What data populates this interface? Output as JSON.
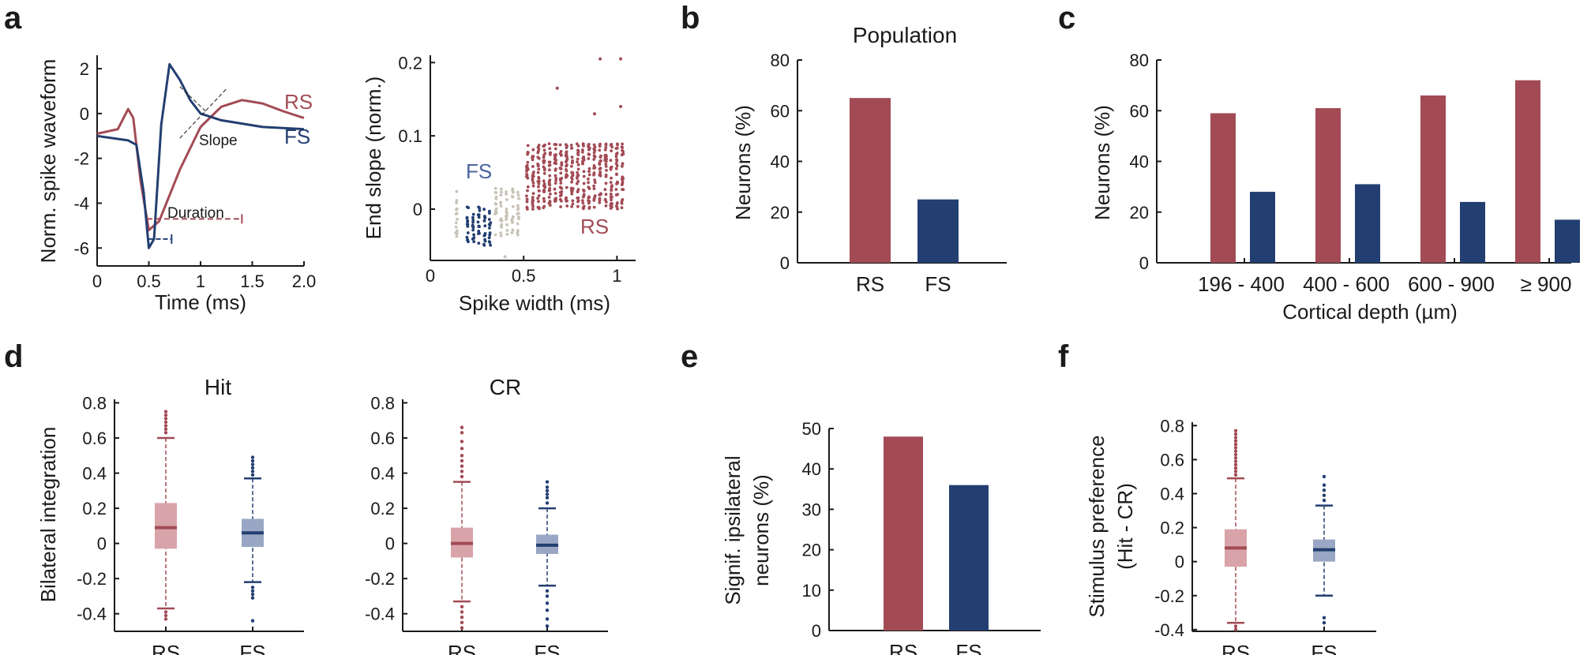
{
  "colors": {
    "rs": "#a24b55",
    "fs": "#233f71",
    "rs_light": "#d9a4a9",
    "fs_light": "#9aa7c4",
    "axis": "#1a1a1a",
    "grey": "#c8c3b6"
  },
  "panel_letters": [
    "a",
    "b",
    "c",
    "d",
    "e",
    "f"
  ],
  "chart_data": [
    {
      "id": "a1",
      "type": "line",
      "panel": "a",
      "xlabel": "Time (ms)",
      "ylabel": "Norm. spike waveform",
      "xlim": [
        0,
        2
      ],
      "ylim": [
        -6.8,
        2.6
      ],
      "xticks": [
        "0",
        "0.5",
        "1",
        "1.5",
        "2.0"
      ],
      "xtick_values": [
        0,
        0.5,
        1,
        1.5,
        2
      ],
      "yticks": [
        "2",
        "0",
        "-2",
        "-4",
        "-6"
      ],
      "ytick_values": [
        2,
        0,
        -2,
        -4,
        -6
      ],
      "series": [
        {
          "name": "RS",
          "color_key": "rs",
          "x": [
            0,
            0.2,
            0.3,
            0.35,
            0.42,
            0.5,
            0.6,
            0.8,
            1.0,
            1.2,
            1.4,
            1.6,
            1.8,
            2.0
          ],
          "y": [
            -0.9,
            -0.7,
            0.2,
            -0.2,
            -3.0,
            -5.2,
            -4.8,
            -2.5,
            -0.6,
            0.3,
            0.6,
            0.45,
            0.1,
            -0.2
          ]
        },
        {
          "name": "FS",
          "color_key": "fs",
          "x": [
            0,
            0.3,
            0.38,
            0.45,
            0.5,
            0.55,
            0.62,
            0.7,
            0.8,
            0.9,
            1.0,
            1.2,
            1.6,
            2.0
          ],
          "y": [
            -1.0,
            -1.2,
            -1.4,
            -3.5,
            -6.0,
            -5.6,
            -0.5,
            2.2,
            1.5,
            0.6,
            0.0,
            -0.3,
            -0.6,
            -0.7
          ]
        }
      ],
      "labels": {
        "rs": "RS",
        "fs": "FS",
        "slope": "Slope",
        "duration": "Duration"
      }
    },
    {
      "id": "a2",
      "type": "scatter",
      "panel": "a",
      "xlabel": "Spike width (ms)",
      "ylabel": "End slope (norm.)",
      "xlim": [
        0,
        1.1
      ],
      "ylim": [
        -0.07,
        0.21
      ],
      "xticks": [
        "0",
        "0.5",
        "1"
      ],
      "xtick_values": [
        0,
        0.5,
        1
      ],
      "yticks": [
        "0.2",
        "0.1",
        "0"
      ],
      "ytick_values": [
        0.2,
        0.1,
        0
      ],
      "clusters": [
        {
          "name": "FS",
          "color_key": "fs",
          "columns": [
            0.2,
            0.23,
            0.26,
            0.29,
            0.32
          ],
          "ymin": -0.05,
          "ymax": 0.005
        },
        {
          "name": "grey",
          "color_key": "grey",
          "columns": [
            0.14,
            0.35,
            0.38,
            0.41,
            0.44,
            0.47
          ],
          "ymin": -0.04,
          "ymax": 0.03
        },
        {
          "name": "RS",
          "color_key": "rs",
          "columns": [
            0.52,
            0.55,
            0.58,
            0.61,
            0.64,
            0.67,
            0.7,
            0.73,
            0.76,
            0.79,
            0.82,
            0.85,
            0.88,
            0.91,
            0.94,
            0.97,
            1.0,
            1.03
          ],
          "ymin": 0.0,
          "ymax": 0.09
        }
      ],
      "outliers": [
        {
          "x": 0.91,
          "y": 0.205
        },
        {
          "x": 1.02,
          "y": 0.205
        },
        {
          "x": 0.68,
          "y": 0.165
        },
        {
          "x": 1.02,
          "y": 0.14
        },
        {
          "x": 0.88,
          "y": 0.13
        },
        {
          "x": 0.4,
          "y": -0.065
        }
      ],
      "labels": {
        "fs": "FS",
        "rs": "RS"
      }
    },
    {
      "id": "b",
      "type": "bar",
      "panel": "b",
      "title": "Population",
      "categories": [
        "RS",
        "FS"
      ],
      "values": [
        65,
        25
      ],
      "color_keys": [
        "rs",
        "fs"
      ],
      "ylabel": "Neurons (%)",
      "ylim": [
        0,
        80
      ],
      "yticks": [
        "80",
        "60",
        "40",
        "20",
        "0"
      ],
      "ytick_values": [
        80,
        60,
        40,
        20,
        0
      ]
    },
    {
      "id": "c",
      "type": "bar",
      "panel": "c",
      "categories": [
        "196 - 400",
        "400 - 600",
        "600 - 900",
        "≥ 900"
      ],
      "series": [
        {
          "name": "RS",
          "color_key": "rs",
          "values": [
            59,
            61,
            66,
            72
          ]
        },
        {
          "name": "FS",
          "color_key": "fs",
          "values": [
            28,
            31,
            24,
            17
          ]
        }
      ],
      "xlabel": "Cortical depth (µm)",
      "ylabel": "Neurons (%)",
      "ylim": [
        0,
        80
      ],
      "yticks": [
        "80",
        "60",
        "40",
        "20",
        "0"
      ],
      "ytick_values": [
        80,
        60,
        40,
        20,
        0
      ]
    },
    {
      "id": "d1",
      "type": "box",
      "panel": "d",
      "title": "Hit",
      "categories": [
        "RS",
        "FS"
      ],
      "ylabel": "Bilateral integration",
      "ylim": [
        -0.5,
        0.82
      ],
      "yticks": [
        "0.8",
        "0.6",
        "0.4",
        "0.2",
        "0",
        "-0.2",
        "-0.4"
      ],
      "ytick_values": [
        0.8,
        0.6,
        0.4,
        0.2,
        0,
        -0.2,
        -0.4
      ],
      "boxes": [
        {
          "name": "RS",
          "color_key": "rs",
          "fill_key": "rs_light",
          "q1": -0.03,
          "median": 0.09,
          "q3": 0.23,
          "whislo": -0.37,
          "whishi": 0.6,
          "fliers": [
            0.63,
            0.65,
            0.67,
            0.69,
            0.71,
            0.73,
            0.75,
            -0.39,
            -0.41,
            -0.43
          ]
        },
        {
          "name": "FS",
          "color_key": "fs",
          "fill_key": "fs_light",
          "q1": -0.02,
          "median": 0.06,
          "q3": 0.14,
          "whislo": -0.22,
          "whishi": 0.37,
          "fliers": [
            0.39,
            0.41,
            0.43,
            0.45,
            0.47,
            0.49,
            -0.25,
            -0.27,
            -0.29,
            -0.31,
            -0.44
          ]
        }
      ]
    },
    {
      "id": "d2",
      "type": "box",
      "panel": "d",
      "title": "CR",
      "categories": [
        "RS",
        "FS"
      ],
      "ylim": [
        -0.5,
        0.82
      ],
      "yticks": [
        "0.8",
        "0.6",
        "0.4",
        "0.2",
        "0",
        "-0.2",
        "-0.4"
      ],
      "ytick_values": [
        0.8,
        0.6,
        0.4,
        0.2,
        0,
        -0.2,
        -0.4
      ],
      "boxes": [
        {
          "name": "RS",
          "color_key": "rs",
          "fill_key": "rs_light",
          "q1": -0.08,
          "median": 0.0,
          "q3": 0.09,
          "whislo": -0.33,
          "whishi": 0.35,
          "fliers": [
            0.38,
            0.41,
            0.44,
            0.47,
            0.5,
            0.54,
            0.58,
            0.63,
            0.66,
            -0.36,
            -0.39,
            -0.42,
            -0.45,
            -0.48
          ]
        },
        {
          "name": "FS",
          "color_key": "fs",
          "fill_key": "fs_light",
          "q1": -0.06,
          "median": -0.01,
          "q3": 0.05,
          "whislo": -0.24,
          "whishi": 0.2,
          "fliers": [
            0.23,
            0.26,
            0.28,
            0.3,
            0.32,
            0.35,
            -0.27,
            -0.3,
            -0.34,
            -0.38,
            -0.43,
            -0.47
          ]
        }
      ]
    },
    {
      "id": "e",
      "type": "bar",
      "panel": "e",
      "categories": [
        "RS",
        "FS"
      ],
      "values": [
        48,
        36
      ],
      "color_keys": [
        "rs",
        "fs"
      ],
      "ylabel_lines": [
        "Signif. ipsilateral",
        "neurons (%)"
      ],
      "ylim": [
        0,
        50
      ],
      "yticks": [
        "50",
        "40",
        "30",
        "20",
        "10",
        "0"
      ],
      "ytick_values": [
        50,
        40,
        30,
        20,
        10,
        0
      ]
    },
    {
      "id": "f",
      "type": "box",
      "panel": "f",
      "categories": [
        "RS",
        "FS"
      ],
      "ylabel_lines": [
        "Stimulus preference",
        "(Hit - CR)"
      ],
      "ylim": [
        -0.41,
        0.82
      ],
      "yticks": [
        "0.8",
        "0.6",
        "0.4",
        "0.2",
        "0",
        "-0.2",
        "-0.4"
      ],
      "ytick_values": [
        0.8,
        0.6,
        0.4,
        0.2,
        0,
        -0.2,
        -0.4
      ],
      "boxes": [
        {
          "name": "RS",
          "color_key": "rs",
          "fill_key": "rs_light",
          "q1": -0.03,
          "median": 0.08,
          "q3": 0.19,
          "whislo": -0.36,
          "whishi": 0.49,
          "fliers": [
            0.51,
            0.53,
            0.55,
            0.57,
            0.59,
            0.61,
            0.63,
            0.65,
            0.67,
            0.69,
            0.71,
            0.73,
            0.75,
            0.77,
            -0.38,
            -0.4
          ]
        },
        {
          "name": "FS",
          "color_key": "fs",
          "fill_key": "fs_light",
          "q1": 0.0,
          "median": 0.07,
          "q3": 0.13,
          "whislo": -0.2,
          "whishi": 0.33,
          "fliers": [
            0.36,
            0.39,
            0.42,
            0.45,
            0.5,
            -0.33,
            -0.36
          ]
        }
      ]
    }
  ]
}
